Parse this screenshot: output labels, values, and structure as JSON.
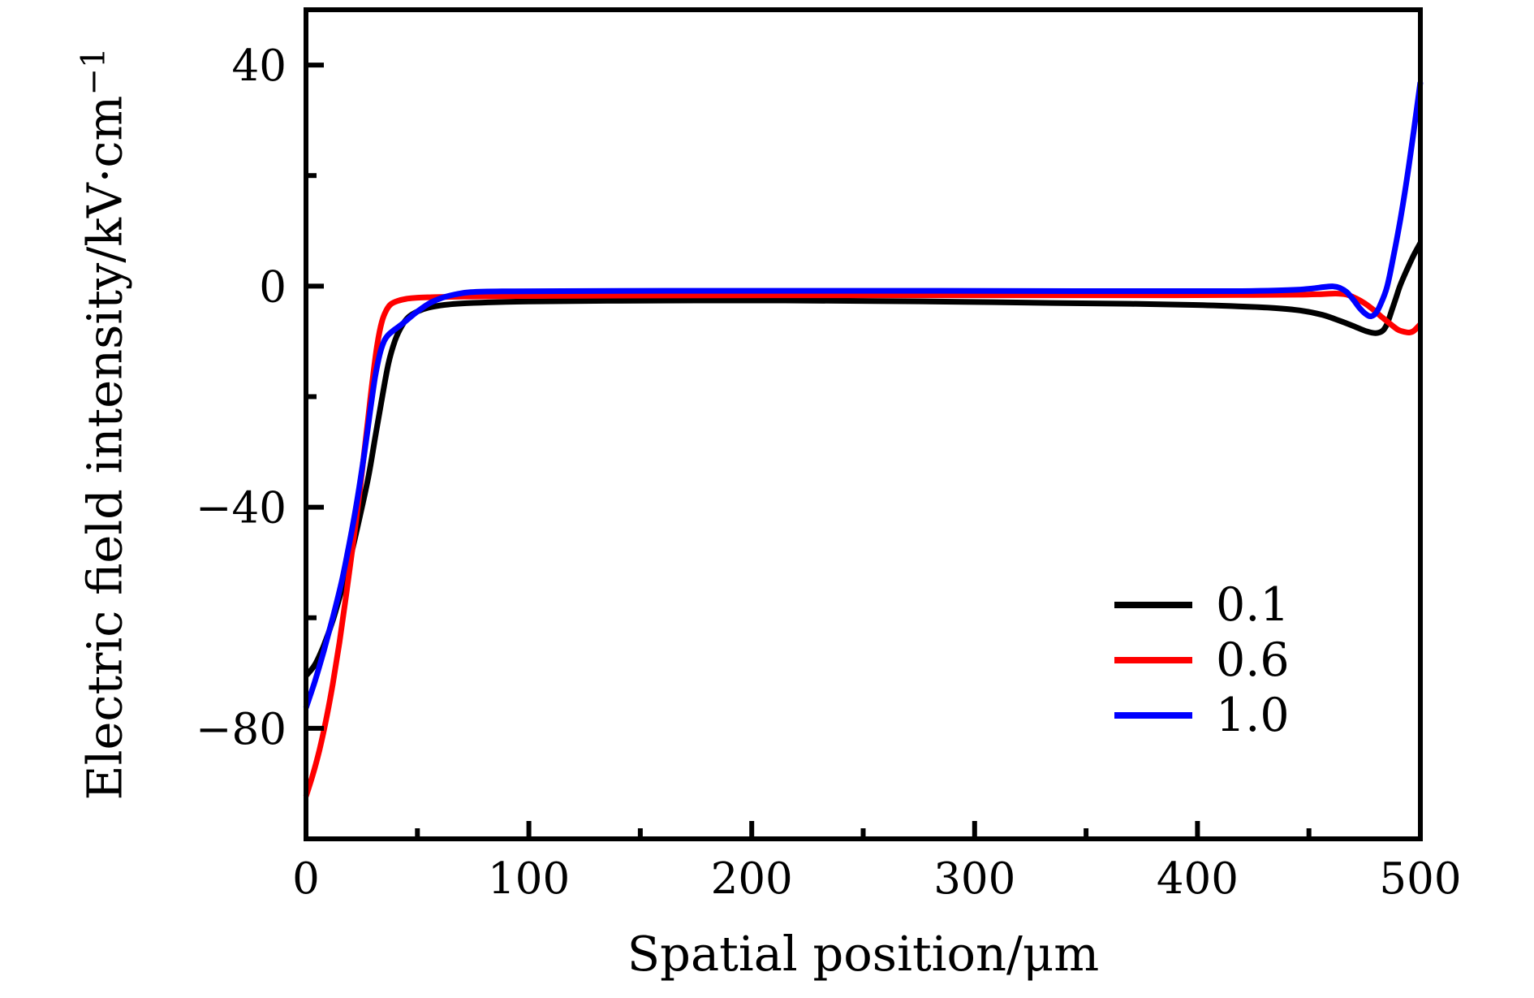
{
  "figure": {
    "background": "#ffffff",
    "axis_color": "#000000"
  },
  "chart_data": {
    "type": "line",
    "title": "",
    "xlabel": "Spatial position/μm",
    "ylabel": "Electric field intensity/kV·cm⁻¹",
    "ylabel_base": "Electric field intensity/kV·cm",
    "ylabel_exponent": "−1",
    "xlim": [
      0,
      500
    ],
    "ylim": [
      -100,
      50
    ],
    "x_ticks_major": [
      0,
      100,
      200,
      300,
      400,
      500
    ],
    "x_ticks_minor": [
      50,
      150,
      250,
      350,
      450
    ],
    "y_ticks_major": [
      40,
      0,
      -40,
      -80
    ],
    "y_ticks_minor": [
      20,
      -20,
      -60
    ],
    "grid": false,
    "legend_position": "inside lower-right",
    "series": [
      {
        "label": "0.1",
        "color": "#000000",
        "points": [
          [
            0,
            -70.5
          ],
          [
            4,
            -68.5
          ],
          [
            8,
            -65
          ],
          [
            12,
            -60.5
          ],
          [
            16,
            -55
          ],
          [
            20,
            -49
          ],
          [
            24,
            -42
          ],
          [
            28,
            -34.5
          ],
          [
            31,
            -27.5
          ],
          [
            34,
            -20.5
          ],
          [
            37,
            -14
          ],
          [
            40,
            -9.8
          ],
          [
            43,
            -7.2
          ],
          [
            46,
            -5.6
          ],
          [
            50,
            -4.6
          ],
          [
            55,
            -3.9
          ],
          [
            62,
            -3.4
          ],
          [
            72,
            -3.1
          ],
          [
            85,
            -2.9
          ],
          [
            105,
            -2.75
          ],
          [
            135,
            -2.65
          ],
          [
            175,
            -2.6
          ],
          [
            215,
            -2.6
          ],
          [
            255,
            -2.7
          ],
          [
            295,
            -2.85
          ],
          [
            335,
            -3.05
          ],
          [
            370,
            -3.2
          ],
          [
            398,
            -3.4
          ],
          [
            418,
            -3.65
          ],
          [
            434,
            -3.95
          ],
          [
            446,
            -4.4
          ],
          [
            456,
            -5.2
          ],
          [
            464,
            -6.3
          ],
          [
            471,
            -7.4
          ],
          [
            476,
            -8.2
          ],
          [
            480,
            -8.5
          ],
          [
            483,
            -8.1
          ],
          [
            485,
            -6.9
          ],
          [
            487,
            -4.6
          ],
          [
            489,
            -2.2
          ],
          [
            491,
            0.2
          ],
          [
            494,
            3.0
          ],
          [
            497,
            5.6
          ],
          [
            500,
            7.8
          ]
        ]
      },
      {
        "label": "0.6",
        "color": "#ff0000",
        "points": [
          [
            0,
            -92.3
          ],
          [
            3,
            -88.5
          ],
          [
            6,
            -84
          ],
          [
            9,
            -78.5
          ],
          [
            12,
            -72
          ],
          [
            15,
            -64.5
          ],
          [
            18,
            -56
          ],
          [
            21,
            -47
          ],
          [
            24,
            -37.5
          ],
          [
            26,
            -30.5
          ],
          [
            28,
            -23.5
          ],
          [
            30,
            -16.5
          ],
          [
            32,
            -10.5
          ],
          [
            34,
            -6.5
          ],
          [
            36,
            -4.4
          ],
          [
            38,
            -3.3
          ],
          [
            41,
            -2.7
          ],
          [
            45,
            -2.3
          ],
          [
            50,
            -2.1
          ],
          [
            58,
            -2.0
          ],
          [
            70,
            -1.9
          ],
          [
            90,
            -1.8
          ],
          [
            120,
            -1.75
          ],
          [
            160,
            -1.7
          ],
          [
            210,
            -1.65
          ],
          [
            270,
            -1.65
          ],
          [
            330,
            -1.65
          ],
          [
            390,
            -1.65
          ],
          [
            425,
            -1.6
          ],
          [
            445,
            -1.55
          ],
          [
            456,
            -1.45
          ],
          [
            462,
            -1.35
          ],
          [
            467,
            -1.55
          ],
          [
            471,
            -2.2
          ],
          [
            475,
            -3.1
          ],
          [
            479,
            -4.3
          ],
          [
            483,
            -5.7
          ],
          [
            487,
            -7.0
          ],
          [
            490,
            -7.9
          ],
          [
            493,
            -8.3
          ],
          [
            495,
            -8.4
          ],
          [
            497,
            -8.1
          ],
          [
            500,
            -6.9
          ]
        ]
      },
      {
        "label": "1.0",
        "color": "#0000ff",
        "points": [
          [
            0,
            -76.3
          ],
          [
            4,
            -71.5
          ],
          [
            8,
            -66
          ],
          [
            12,
            -60
          ],
          [
            16,
            -53.5
          ],
          [
            19,
            -47.5
          ],
          [
            22,
            -41
          ],
          [
            25,
            -33.5
          ],
          [
            27,
            -28
          ],
          [
            29,
            -22
          ],
          [
            31,
            -16.5
          ],
          [
            33,
            -12.5
          ],
          [
            35,
            -10
          ],
          [
            37,
            -8.8
          ],
          [
            40,
            -7.8
          ],
          [
            43,
            -6.9
          ],
          [
            46,
            -5.9
          ],
          [
            49,
            -4.9
          ],
          [
            52,
            -4.0
          ],
          [
            55,
            -3.2
          ],
          [
            58,
            -2.6
          ],
          [
            62,
            -2.0
          ],
          [
            67,
            -1.5
          ],
          [
            74,
            -1.1
          ],
          [
            88,
            -0.95
          ],
          [
            115,
            -0.9
          ],
          [
            165,
            -0.85
          ],
          [
            225,
            -0.85
          ],
          [
            285,
            -0.85
          ],
          [
            345,
            -0.9
          ],
          [
            390,
            -0.9
          ],
          [
            420,
            -0.9
          ],
          [
            435,
            -0.8
          ],
          [
            445,
            -0.65
          ],
          [
            452,
            -0.4
          ],
          [
            457,
            -0.15
          ],
          [
            461,
            -0.05
          ],
          [
            464,
            -0.35
          ],
          [
            467,
            -1.1
          ],
          [
            470,
            -2.5
          ],
          [
            473,
            -4.1
          ],
          [
            476,
            -5.2
          ],
          [
            478,
            -5.45
          ],
          [
            480,
            -4.9
          ],
          [
            482,
            -3.4
          ],
          [
            485,
            -0.2
          ],
          [
            488,
            5.5
          ],
          [
            491,
            12
          ],
          [
            494,
            19.5
          ],
          [
            497,
            28
          ],
          [
            500,
            36.9
          ]
        ]
      }
    ]
  }
}
